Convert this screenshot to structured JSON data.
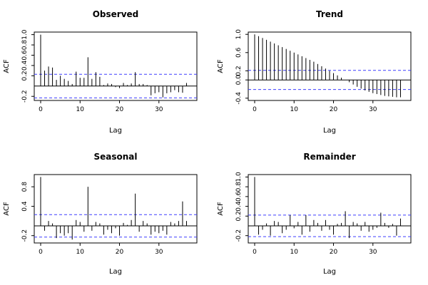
{
  "chart_data": [
    {
      "type": "bar",
      "title": "Observed",
      "xlabel": "Lag",
      "ylabel": "ACF",
      "xlim": [
        0,
        38
      ],
      "ylim": [
        -0.28,
        1.05
      ],
      "xticks": [
        0,
        10,
        20,
        30
      ],
      "yticks": [
        -0.2,
        0.2,
        0.4,
        0.6,
        0.8,
        1.0
      ],
      "ytick_labels": [
        "-0.2",
        "0.2",
        "0.4",
        "0.6",
        "0.8",
        "1.0"
      ],
      "ci": 0.23,
      "lags": [
        0,
        1,
        2,
        3,
        4,
        5,
        6,
        7,
        8,
        9,
        10,
        11,
        12,
        13,
        14,
        15,
        16,
        17,
        18,
        19,
        20,
        21,
        22,
        23,
        24,
        25,
        26,
        27,
        28,
        29,
        30,
        31,
        32,
        33,
        34,
        35,
        36,
        37
      ],
      "values": [
        1.0,
        0.3,
        0.38,
        0.36,
        0.12,
        0.2,
        0.14,
        0.1,
        0.04,
        0.28,
        0.16,
        0.16,
        0.56,
        0.14,
        0.27,
        0.18,
        0.02,
        0.05,
        0.04,
        -0.02,
        -0.04,
        0.06,
        0.02,
        0.05,
        0.27,
        0.04,
        0.04,
        0.02,
        -0.18,
        -0.14,
        -0.12,
        -0.22,
        -0.14,
        -0.12,
        -0.08,
        -0.12,
        -0.13,
        0.06
      ]
    },
    {
      "type": "bar",
      "title": "Trend",
      "xlabel": "Lag",
      "ylabel": "ACF",
      "xlim": [
        0,
        38
      ],
      "ylim": [
        -0.45,
        1.05
      ],
      "xticks": [
        0,
        10,
        20,
        30
      ],
      "yticks": [
        -0.4,
        0.0,
        0.2,
        0.6,
        1.0
      ],
      "ytick_labels": [
        "-0.4",
        "0.0",
        "0.2",
        "0.6",
        "1.0"
      ],
      "ci": 0.21,
      "lags": [
        0,
        1,
        2,
        3,
        4,
        5,
        6,
        7,
        8,
        9,
        10,
        11,
        12,
        13,
        14,
        15,
        16,
        17,
        18,
        19,
        20,
        21,
        22,
        23,
        24,
        25,
        26,
        27,
        28,
        29,
        30,
        31,
        32,
        33,
        34,
        35,
        36,
        37
      ],
      "values": [
        1.0,
        0.96,
        0.92,
        0.88,
        0.84,
        0.8,
        0.76,
        0.72,
        0.68,
        0.64,
        0.6,
        0.56,
        0.52,
        0.48,
        0.44,
        0.4,
        0.35,
        0.3,
        0.25,
        0.2,
        0.15,
        0.1,
        0.05,
        0.0,
        -0.05,
        -0.1,
        -0.15,
        -0.19,
        -0.23,
        -0.26,
        -0.29,
        -0.31,
        -0.33,
        -0.35,
        -0.36,
        -0.37,
        -0.38,
        -0.38
      ]
    },
    {
      "type": "bar",
      "title": "Seasonal",
      "xlabel": "Lag",
      "ylabel": "ACF",
      "xlim": [
        0,
        38
      ],
      "ylim": [
        -0.35,
        1.05
      ],
      "xticks": [
        0,
        10,
        20,
        30
      ],
      "yticks": [
        -0.2,
        0.4,
        0.8
      ],
      "ytick_labels": [
        "-0.2",
        "0.4",
        "0.8"
      ],
      "ci": 0.23,
      "lags": [
        0,
        1,
        2,
        3,
        4,
        5,
        6,
        7,
        8,
        9,
        10,
        11,
        12,
        13,
        14,
        15,
        16,
        17,
        18,
        19,
        20,
        21,
        22,
        23,
        24,
        25,
        26,
        27,
        28,
        29,
        30,
        31,
        32,
        33,
        34,
        35,
        36,
        37
      ],
      "values": [
        1.0,
        -0.1,
        0.1,
        0.05,
        -0.25,
        -0.15,
        -0.2,
        -0.15,
        -0.28,
        0.12,
        0.08,
        -0.12,
        0.8,
        -0.1,
        0.08,
        0.05,
        -0.18,
        -0.08,
        -0.15,
        -0.05,
        -0.2,
        0.06,
        0.02,
        0.12,
        0.66,
        -0.12,
        0.1,
        0.05,
        -0.18,
        -0.12,
        -0.15,
        -0.1,
        -0.18,
        0.08,
        0.05,
        0.1,
        0.5,
        0.1
      ]
    },
    {
      "type": "bar",
      "title": "Remainder",
      "xlabel": "Lag",
      "ylabel": "ACF",
      "xlim": [
        0,
        38
      ],
      "ylim": [
        -0.35,
        1.05
      ],
      "xticks": [
        0,
        10,
        20,
        30
      ],
      "yticks": [
        -0.2,
        0.2,
        0.4,
        0.6,
        0.8,
        1.0
      ],
      "ytick_labels": [
        "-0.2",
        "0.2",
        "0.4",
        "0.6",
        "0.8",
        "1.0"
      ],
      "ci": 0.22,
      "lags": [
        0,
        1,
        2,
        3,
        4,
        5,
        6,
        7,
        8,
        9,
        10,
        11,
        12,
        13,
        14,
        15,
        16,
        17,
        18,
        19,
        20,
        21,
        22,
        23,
        24,
        25,
        26,
        27,
        28,
        29,
        30,
        31,
        32,
        33,
        34,
        35,
        36,
        37
      ],
      "values": [
        1.0,
        -0.18,
        -0.08,
        0.05,
        -0.2,
        0.1,
        0.08,
        -0.15,
        -0.08,
        0.22,
        -0.05,
        0.08,
        -0.18,
        0.22,
        -0.12,
        0.12,
        0.06,
        -0.1,
        0.12,
        -0.08,
        -0.18,
        0.04,
        0.06,
        0.3,
        -0.25,
        0.08,
        0.05,
        -0.1,
        0.08,
        -0.12,
        -0.08,
        -0.04,
        0.27,
        0.06,
        -0.04,
        0.04,
        -0.2,
        0.15
      ]
    }
  ]
}
